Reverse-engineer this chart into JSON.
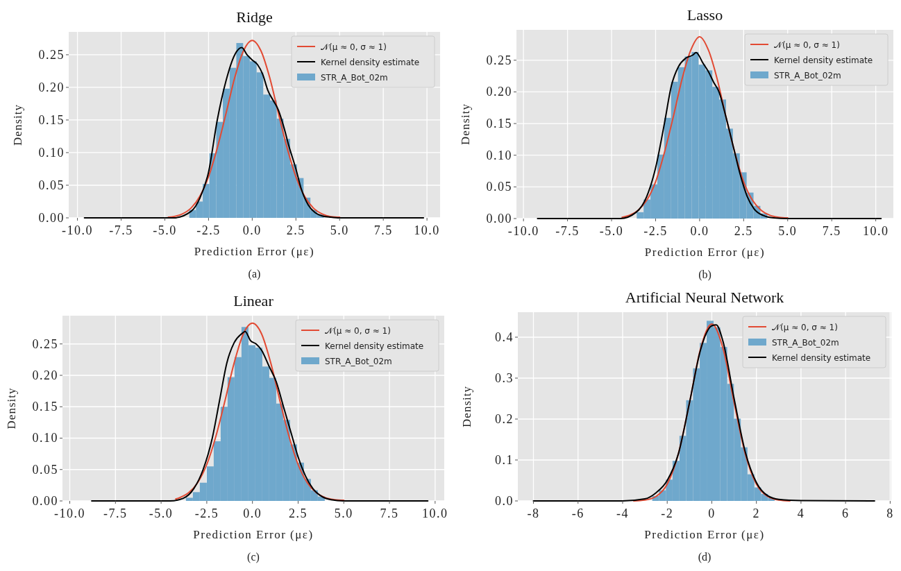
{
  "chart_data": [
    {
      "type": "histogram",
      "title": "Ridge",
      "xlabel": "Prediction Error (με)",
      "ylabel": "Density",
      "annotations": [
        "(a)"
      ],
      "legend": "top right",
      "grid": true,
      "xlim": [
        -10.5,
        10.75
      ],
      "xticks": [
        {
          "value": -10,
          "label": "-10.0"
        },
        {
          "value": -7.5,
          "label": "-7.5"
        },
        {
          "value": -5,
          "label": "-5.0"
        },
        {
          "value": -2.5,
          "label": "-2.5"
        },
        {
          "value": 0,
          "label": "0.0"
        },
        {
          "value": 2.5,
          "label": "2.5"
        },
        {
          "value": 5,
          "label": "5.0"
        },
        {
          "value": 7.5,
          "label": "7.5"
        },
        {
          "value": 10,
          "label": "10.0"
        }
      ],
      "ylim": [
        0,
        0.285
      ],
      "yticks": [
        {
          "value": 0,
          "label": "0.00"
        },
        {
          "value": 0.05,
          "label": "0.05"
        },
        {
          "value": 0.1,
          "label": "0.10"
        },
        {
          "value": 0.15,
          "label": "0.15"
        },
        {
          "value": 0.2,
          "label": "0.20"
        },
        {
          "value": 0.25,
          "label": "0.25"
        }
      ],
      "series": [
        {
          "type": "line",
          "name": "𝒩(μ ≈ 0, σ ≈ 1)",
          "color": "#e24a33",
          "x": [
            -4.8,
            -4.5,
            -4,
            -3.5,
            -3,
            -2.5,
            -2,
            -1.5,
            -1,
            -0.5,
            0,
            0.5,
            1,
            1.5,
            2,
            2.5,
            3,
            3.5,
            4,
            4.5,
            5
          ],
          "values": [
            0.001,
            0.002,
            0.006,
            0.015,
            0.033,
            0.063,
            0.107,
            0.16,
            0.215,
            0.256,
            0.272,
            0.256,
            0.215,
            0.16,
            0.107,
            0.063,
            0.033,
            0.015,
            0.006,
            0.002,
            0.001
          ]
        },
        {
          "type": "line",
          "name": "Kernel density estimate",
          "color": "#000000",
          "x": [
            -9.6,
            -4.5,
            -3.5,
            -3,
            -2.5,
            -2,
            -1.5,
            -1,
            -0.6,
            -0.3,
            0,
            0.3,
            0.6,
            0.9,
            1.2,
            1.5,
            1.8,
            2.1,
            2.5,
            2.8,
            3.2,
            3.6,
            4,
            4.5,
            5,
            9.8
          ],
          "values": [
            0,
            0,
            0.01,
            0.03,
            0.07,
            0.15,
            0.21,
            0.25,
            0.261,
            0.25,
            0.242,
            0.235,
            0.22,
            0.195,
            0.18,
            0.165,
            0.14,
            0.11,
            0.075,
            0.045,
            0.02,
            0.008,
            0.003,
            0.001,
            0,
            0
          ]
        },
        {
          "type": "histogram",
          "name": "STR_A_Bot_02m",
          "color": "#6fa8cc",
          "bins": [
            -3.6,
            -3.22,
            -2.83,
            -2.45,
            -2.06,
            -1.68,
            -1.29,
            -0.91,
            -0.52,
            -0.14,
            0.25,
            0.63,
            1.02,
            1.4,
            1.79,
            2.17,
            2.56,
            2.94,
            3.33,
            3.71,
            4.1
          ],
          "values": [
            0.012,
            0.025,
            0.052,
            0.099,
            0.147,
            0.198,
            0.23,
            0.268,
            0.248,
            0.24,
            0.223,
            0.189,
            0.18,
            0.152,
            0.121,
            0.082,
            0.061,
            0.031,
            0.012,
            0.005
          ]
        }
      ]
    },
    {
      "type": "histogram",
      "title": "Lasso",
      "xlabel": "Prediction Error (με)",
      "ylabel": "Density",
      "annotations": [
        "(b)"
      ],
      "legend": "top right",
      "grid": true,
      "xlim": [
        -10.4,
        11
      ],
      "xticks": [
        {
          "value": -10,
          "label": "-10.0"
        },
        {
          "value": -7.5,
          "label": "-7.5"
        },
        {
          "value": -5,
          "label": "-5.0"
        },
        {
          "value": -2.5,
          "label": "-2.5"
        },
        {
          "value": 0,
          "label": "0.0"
        },
        {
          "value": 2.5,
          "label": "2.5"
        },
        {
          "value": 5,
          "label": "5.0"
        },
        {
          "value": 7.5,
          "label": "7.5"
        },
        {
          "value": 10,
          "label": "10.0"
        }
      ],
      "ylim": [
        0,
        0.298
      ],
      "yticks": [
        {
          "value": 0,
          "label": "0.00"
        },
        {
          "value": 0.05,
          "label": "0.05"
        },
        {
          "value": 0.1,
          "label": "0.10"
        },
        {
          "value": 0.15,
          "label": "0.15"
        },
        {
          "value": 0.2,
          "label": "0.20"
        },
        {
          "value": 0.25,
          "label": "0.25"
        }
      ],
      "series": [
        {
          "type": "line",
          "name": "𝒩(μ ≈ 0, σ ≈ 1)",
          "color": "#e24a33",
          "x": [
            -4.4,
            -4,
            -3.5,
            -3,
            -2.5,
            -2,
            -1.5,
            -1,
            -0.5,
            0,
            0.5,
            1,
            1.5,
            2,
            2.5,
            3,
            3.5,
            4,
            4.5,
            5
          ],
          "values": [
            0.002,
            0.005,
            0.013,
            0.029,
            0.058,
            0.104,
            0.16,
            0.22,
            0.266,
            0.287,
            0.266,
            0.22,
            0.16,
            0.104,
            0.058,
            0.029,
            0.013,
            0.005,
            0.002,
            0.001
          ]
        },
        {
          "type": "line",
          "name": "Kernel density estimate",
          "color": "#000000",
          "x": [
            -9.2,
            -4.5,
            -3.6,
            -3,
            -2.5,
            -2,
            -1.6,
            -1.2,
            -0.8,
            -0.4,
            -0.2,
            0.2,
            0.5,
            0.8,
            1.1,
            1.5,
            1.9,
            2.3,
            2.7,
            3.1,
            3.6,
            4.2,
            5,
            10.3
          ],
          "values": [
            0,
            0,
            0.01,
            0.035,
            0.08,
            0.15,
            0.21,
            0.24,
            0.253,
            0.258,
            0.262,
            0.245,
            0.232,
            0.215,
            0.2,
            0.16,
            0.115,
            0.07,
            0.035,
            0.015,
            0.005,
            0.001,
            0,
            0
          ]
        },
        {
          "type": "histogram",
          "name": "STR_A_Bot_02m",
          "color": "#6fa8cc",
          "bins": [
            -3.57,
            -3.18,
            -2.79,
            -2.4,
            -2.01,
            -1.62,
            -1.23,
            -0.84,
            -0.45,
            -0.06,
            0.33,
            0.72,
            1.11,
            1.5,
            1.89,
            2.28,
            2.67,
            3.06,
            3.45,
            3.84
          ],
          "values": [
            0.01,
            0.03,
            0.054,
            0.101,
            0.159,
            0.216,
            0.239,
            0.256,
            0.263,
            0.243,
            0.234,
            0.208,
            0.188,
            0.142,
            0.103,
            0.073,
            0.041,
            0.02,
            0.008
          ]
        }
      ]
    },
    {
      "type": "histogram",
      "title": "Linear",
      "xlabel": "Prediction Error (με)",
      "ylabel": "Density",
      "annotations": [
        "(c)"
      ],
      "legend": "top right",
      "grid": true,
      "xlim": [
        -10.4,
        10.5
      ],
      "xticks": [
        {
          "value": -10,
          "label": "-10.0"
        },
        {
          "value": -7.5,
          "label": "-7.5"
        },
        {
          "value": -5,
          "label": "-5.0"
        },
        {
          "value": -2.5,
          "label": "-2.5"
        },
        {
          "value": 0,
          "label": "0.0"
        },
        {
          "value": 2.5,
          "label": "2.5"
        },
        {
          "value": 5,
          "label": "5.0"
        },
        {
          "value": 7.5,
          "label": "7.5"
        },
        {
          "value": 10,
          "label": "10.0"
        }
      ],
      "ylim": [
        0,
        0.295
      ],
      "yticks": [
        {
          "value": 0,
          "label": "0.00"
        },
        {
          "value": 0.05,
          "label": "0.05"
        },
        {
          "value": 0.1,
          "label": "0.10"
        },
        {
          "value": 0.15,
          "label": "0.15"
        },
        {
          "value": 0.2,
          "label": "0.20"
        },
        {
          "value": 0.25,
          "label": "0.25"
        }
      ],
      "series": [
        {
          "type": "line",
          "name": "𝒩(μ ≈ 0, σ ≈ 1)",
          "color": "#e24a33",
          "x": [
            -4.2,
            -4,
            -3.5,
            -3,
            -2.5,
            -2,
            -1.5,
            -1,
            -0.5,
            0,
            0.5,
            1,
            1.5,
            2,
            2.5,
            3,
            3.5,
            4,
            4.5,
            5
          ],
          "values": [
            0.003,
            0.005,
            0.013,
            0.029,
            0.058,
            0.103,
            0.16,
            0.22,
            0.266,
            0.283,
            0.266,
            0.22,
            0.16,
            0.103,
            0.058,
            0.029,
            0.013,
            0.005,
            0.002,
            0.001
          ]
        },
        {
          "type": "line",
          "name": "Kernel density estimate",
          "color": "#000000",
          "x": [
            -8.8,
            -4.5,
            -3.8,
            -3.2,
            -2.7,
            -2.2,
            -1.8,
            -1.4,
            -1,
            -0.6,
            -0.4,
            -0.1,
            0.2,
            0.5,
            0.9,
            1.3,
            1.7,
            2.1,
            2.5,
            2.9,
            3.3,
            3.8,
            4.3,
            5,
            9.6
          ],
          "values": [
            0,
            0,
            0.004,
            0.02,
            0.05,
            0.1,
            0.16,
            0.22,
            0.252,
            0.266,
            0.27,
            0.255,
            0.25,
            0.24,
            0.215,
            0.19,
            0.15,
            0.11,
            0.07,
            0.04,
            0.02,
            0.007,
            0.002,
            0,
            0
          ]
        },
        {
          "type": "histogram",
          "name": "STR_A_Bot_02m",
          "color": "#6fa8cc",
          "bins": [
            -3.64,
            -3.26,
            -2.88,
            -2.5,
            -2.12,
            -1.74,
            -1.36,
            -0.98,
            -0.6,
            -0.22,
            0.16,
            0.54,
            0.92,
            1.3,
            1.68,
            2.06,
            2.44,
            2.82,
            3.2,
            3.58,
            3.96
          ],
          "values": [
            0.005,
            0.014,
            0.029,
            0.055,
            0.095,
            0.15,
            0.197,
            0.229,
            0.277,
            0.248,
            0.244,
            0.214,
            0.196,
            0.155,
            0.129,
            0.09,
            0.061,
            0.035,
            0.017,
            0.007
          ]
        }
      ]
    },
    {
      "type": "histogram",
      "title": "Artificial Neural Network",
      "xlabel": "Prediction Error (με)",
      "ylabel": "Density",
      "annotations": [
        "(d)"
      ],
      "legend": "top right",
      "grid": true,
      "xlim": [
        -8.7,
        8.05
      ],
      "xticks": [
        -8,
        -6,
        -4,
        -2,
        0,
        2,
        4,
        6,
        8
      ],
      "ylim": [
        0,
        0.461
      ],
      "yticks": [
        {
          "value": 0,
          "label": "0.0"
        },
        {
          "value": 0.1,
          "label": "0.1"
        },
        {
          "value": 0.2,
          "label": "0.2"
        },
        {
          "value": 0.3,
          "label": "0.3"
        },
        {
          "value": 0.4,
          "label": "0.4"
        }
      ],
      "series": [
        {
          "type": "line",
          "name": "𝒩(μ ≈ 0, σ ≈ 1)",
          "color": "#e24a33",
          "x": [
            -3.5,
            -3,
            -2.5,
            -2,
            -1.5,
            -1,
            -0.5,
            0,
            0.5,
            1,
            1.5,
            2,
            2.5,
            3,
            3.5
          ],
          "values": [
            0,
            0.002,
            0.011,
            0.041,
            0.115,
            0.24,
            0.373,
            0.432,
            0.373,
            0.24,
            0.115,
            0.041,
            0.011,
            0.002,
            0
          ]
        },
        {
          "type": "histogram",
          "name": "STR_A_Bot_02m",
          "color": "#6fa8cc",
          "bins": [
            -2.67,
            -2.37,
            -2.06,
            -1.76,
            -1.45,
            -1.15,
            -0.84,
            -0.54,
            -0.23,
            0.08,
            0.38,
            0.69,
            0.99,
            1.3,
            1.6,
            1.91,
            2.21,
            2.52,
            2.82
          ],
          "values": [
            0.012,
            0.026,
            0.052,
            0.098,
            0.159,
            0.246,
            0.324,
            0.386,
            0.44,
            0.424,
            0.376,
            0.286,
            0.201,
            0.131,
            0.065,
            0.033,
            0.017,
            0.007
          ]
        },
        {
          "type": "line",
          "name": "Kernel density estimate",
          "color": "#000000",
          "x": [
            -8,
            -4,
            -3,
            -2.5,
            -2,
            -1.5,
            -1,
            -0.5,
            0,
            0.2,
            0.5,
            1,
            1.5,
            2,
            2.5,
            3,
            4,
            7.3
          ],
          "values": [
            0,
            0,
            0.005,
            0.02,
            0.05,
            0.115,
            0.24,
            0.37,
            0.428,
            0.43,
            0.39,
            0.25,
            0.12,
            0.045,
            0.013,
            0.004,
            0.001,
            0
          ]
        }
      ]
    }
  ]
}
